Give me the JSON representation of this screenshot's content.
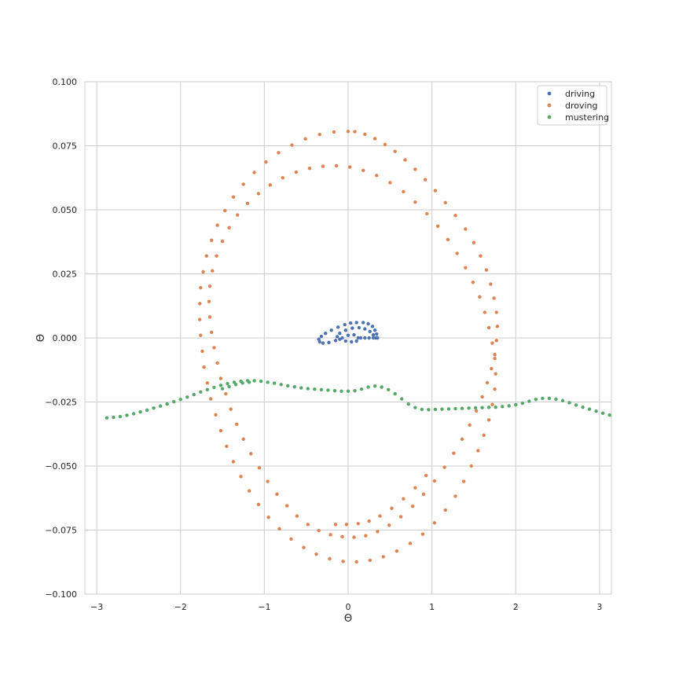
{
  "chart_data": {
    "type": "scatter",
    "title": "",
    "xlabel": "Θ",
    "ylabel": "Θ̇",
    "xlim": [
      -3.14159,
      3.14159
    ],
    "ylim": [
      -0.1,
      0.1
    ],
    "x_ticks": [
      -3,
      -2,
      -1,
      0,
      1,
      2,
      3
    ],
    "x_tick_labels": [
      "−3",
      "−2",
      "−1",
      "0",
      "1",
      "2",
      "3"
    ],
    "y_ticks": [
      -0.1,
      -0.075,
      -0.05,
      -0.025,
      0.0,
      0.025,
      0.05,
      0.075,
      0.1
    ],
    "y_tick_labels": [
      "−0.100",
      "−0.075",
      "−0.050",
      "−0.025",
      "0.000",
      "0.025",
      "0.050",
      "0.075",
      "0.100"
    ],
    "grid": true,
    "legend_position": "top-right",
    "series": [
      {
        "name": "driving",
        "color": "#4c72b0",
        "points": [
          [
            0.35,
            0.0
          ],
          [
            0.34,
            0.0015
          ],
          [
            0.32,
            0.003
          ],
          [
            0.29,
            0.0045
          ],
          [
            0.24,
            0.0055
          ],
          [
            0.18,
            0.006
          ],
          [
            0.1,
            0.006
          ],
          [
            0.03,
            0.0058
          ],
          [
            -0.04,
            0.0052
          ],
          [
            -0.12,
            0.0042
          ],
          [
            -0.2,
            0.003
          ],
          [
            -0.27,
            0.0018
          ],
          [
            -0.32,
            0.0006
          ],
          [
            -0.35,
            -0.0005
          ],
          [
            -0.34,
            -0.0015
          ],
          [
            -0.3,
            -0.002
          ],
          [
            -0.23,
            -0.0018
          ],
          [
            -0.15,
            -0.001
          ],
          [
            -0.07,
            0.0
          ],
          [
            0.0,
            0.001
          ],
          [
            0.07,
            0.0012
          ],
          [
            0.12,
            0.0
          ],
          [
            0.1,
            -0.0012
          ],
          [
            0.04,
            -0.0015
          ],
          [
            -0.03,
            -0.0012
          ],
          [
            -0.1,
            -0.0005
          ],
          [
            -0.13,
            0.0005
          ],
          [
            -0.1,
            0.0018
          ],
          [
            -0.03,
            0.003
          ],
          [
            0.05,
            0.0038
          ],
          [
            0.13,
            0.004
          ],
          [
            0.2,
            0.0035
          ],
          [
            0.26,
            0.0025
          ],
          [
            0.3,
            0.0012
          ],
          [
            0.33,
            0.0
          ],
          [
            0.3,
            0.0
          ],
          [
            0.25,
            0.0
          ],
          [
            0.2,
            0.0
          ],
          [
            0.15,
            0.0
          ]
        ]
      },
      {
        "name": "droving",
        "color": "#dd8452",
        "points": [
          [
            0.08,
            0.0805
          ],
          [
            0.2,
            0.0795
          ],
          [
            0.32,
            0.0778
          ],
          [
            0.44,
            0.0755
          ],
          [
            0.56,
            0.0728
          ],
          [
            0.68,
            0.0695
          ],
          [
            0.8,
            0.0658
          ],
          [
            0.92,
            0.0618
          ],
          [
            1.04,
            0.0575
          ],
          [
            1.16,
            0.0528
          ],
          [
            1.28,
            0.0478
          ],
          [
            1.4,
            0.0425
          ],
          [
            1.5,
            0.0372
          ],
          [
            1.58,
            0.032
          ],
          [
            1.65,
            0.0265
          ],
          [
            1.7,
            0.021
          ],
          [
            1.74,
            0.0155
          ],
          [
            1.77,
            0.01
          ],
          [
            1.78,
            0.0045
          ],
          [
            1.77,
            -0.001
          ],
          [
            1.75,
            -0.0065
          ],
          [
            1.71,
            -0.012
          ],
          [
            1.66,
            -0.0175
          ],
          [
            1.6,
            -0.023
          ],
          [
            1.53,
            -0.0285
          ],
          [
            1.45,
            -0.034
          ],
          [
            1.36,
            -0.0395
          ],
          [
            1.26,
            -0.045
          ],
          [
            1.15,
            -0.0505
          ],
          [
            1.03,
            -0.0558
          ],
          [
            0.9,
            -0.061
          ],
          [
            0.77,
            -0.0657
          ],
          [
            0.63,
            -0.0698
          ],
          [
            0.49,
            -0.0731
          ],
          [
            0.35,
            -0.0756
          ],
          [
            0.21,
            -0.0772
          ],
          [
            0.07,
            -0.0778
          ],
          [
            -0.07,
            -0.0776
          ],
          [
            -0.21,
            -0.0768
          ],
          [
            -0.35,
            -0.0752
          ],
          [
            -0.48,
            -0.0728
          ],
          [
            -0.61,
            -0.0695
          ],
          [
            -0.73,
            -0.0655
          ],
          [
            -0.85,
            -0.061
          ],
          [
            -0.96,
            -0.056
          ],
          [
            -1.06,
            -0.0507
          ],
          [
            -1.16,
            -0.0452
          ],
          [
            -1.25,
            -0.0395
          ],
          [
            -1.33,
            -0.0337
          ],
          [
            -1.4,
            -0.0278
          ],
          [
            -1.46,
            -0.0218
          ],
          [
            -1.52,
            -0.0158
          ],
          [
            -1.56,
            -0.0098
          ],
          [
            -1.6,
            -0.0038
          ],
          [
            -1.63,
            0.0022
          ],
          [
            -1.65,
            0.0082
          ],
          [
            -1.66,
            0.0142
          ],
          [
            -1.65,
            0.0202
          ],
          [
            -1.62,
            0.0262
          ],
          [
            -1.57,
            0.032
          ],
          [
            -1.5,
            0.0377
          ],
          [
            -1.42,
            0.043
          ],
          [
            -1.32,
            0.048
          ],
          [
            -1.2,
            0.0525
          ],
          [
            -1.07,
            0.0563
          ],
          [
            -0.93,
            0.0597
          ],
          [
            -0.78,
            0.0625
          ],
          [
            -0.62,
            0.0647
          ],
          [
            -0.46,
            0.0662
          ],
          [
            -0.3,
            0.067
          ],
          [
            -0.14,
            0.0672
          ],
          [
            0.02,
            0.0667
          ],
          [
            0.18,
            0.0654
          ],
          [
            0.34,
            0.0634
          ],
          [
            0.5,
            0.0606
          ],
          [
            0.66,
            0.0571
          ],
          [
            0.8,
            0.053
          ],
          [
            0.94,
            0.0485
          ],
          [
            1.07,
            0.0436
          ],
          [
            1.19,
            0.0384
          ],
          [
            1.3,
            0.033
          ],
          [
            1.4,
            0.0274
          ],
          [
            1.49,
            0.0217
          ],
          [
            1.57,
            0.016
          ],
          [
            1.63,
            0.01
          ],
          [
            1.68,
            0.004
          ],
          [
            1.72,
            -0.002
          ],
          [
            1.75,
            -0.008
          ],
          [
            1.76,
            -0.014
          ],
          [
            1.75,
            -0.02
          ],
          [
            1.72,
            -0.026
          ],
          [
            1.68,
            -0.032
          ],
          [
            1.62,
            -0.038
          ],
          [
            1.55,
            -0.044
          ],
          [
            1.47,
            -0.05
          ],
          [
            1.38,
            -0.056
          ],
          [
            1.28,
            -0.0618
          ],
          [
            1.16,
            -0.0672
          ],
          [
            1.03,
            -0.0722
          ],
          [
            0.89,
            -0.0766
          ],
          [
            0.74,
            -0.0802
          ],
          [
            0.58,
            -0.0832
          ],
          [
            0.42,
            -0.0854
          ],
          [
            0.26,
            -0.0868
          ],
          [
            0.1,
            -0.0874
          ],
          [
            -0.06,
            -0.0872
          ],
          [
            -0.22,
            -0.0862
          ],
          [
            -0.38,
            -0.0844
          ],
          [
            -0.53,
            -0.0818
          ],
          [
            -0.68,
            -0.0785
          ],
          [
            -0.82,
            -0.0745
          ],
          [
            -0.95,
            -0.07
          ],
          [
            -1.07,
            -0.065
          ],
          [
            -1.18,
            -0.0597
          ],
          [
            -1.28,
            -0.0541
          ],
          [
            -1.37,
            -0.0483
          ],
          [
            -1.45,
            -0.0423
          ],
          [
            -1.52,
            -0.0362
          ],
          [
            -1.58,
            -0.03
          ],
          [
            -1.64,
            -0.0238
          ],
          [
            -1.68,
            -0.0176
          ],
          [
            -1.72,
            -0.0114
          ],
          [
            -1.74,
            -0.0052
          ],
          [
            -1.76,
            0.001
          ],
          [
            -1.77,
            0.0072
          ],
          [
            -1.77,
            0.0134
          ],
          [
            -1.76,
            0.0196
          ],
          [
            -1.73,
            0.0258
          ],
          [
            -1.69,
            0.032
          ],
          [
            -1.63,
            0.0381
          ],
          [
            -1.56,
            0.044
          ],
          [
            -1.47,
            0.0497
          ],
          [
            -1.37,
            0.055
          ],
          [
            -1.25,
            0.06
          ],
          [
            -1.12,
            0.0646
          ],
          [
            -0.98,
            0.0687
          ],
          [
            -0.83,
            0.0723
          ],
          [
            -0.67,
            0.0753
          ],
          [
            -0.51,
            0.0777
          ],
          [
            -0.34,
            0.0794
          ],
          [
            -0.17,
            0.0804
          ],
          [
            0.0,
            0.0806
          ],
          [
            0.12,
            -0.0725
          ],
          [
            0.25,
            -0.0715
          ],
          [
            0.38,
            -0.0695
          ],
          [
            0.52,
            -0.0665
          ],
          [
            0.66,
            -0.0628
          ],
          [
            0.8,
            -0.0585
          ],
          [
            0.93,
            -0.0537
          ],
          [
            -0.15,
            -0.0728
          ],
          [
            -0.02,
            -0.0728
          ]
        ]
      },
      {
        "name": "mustering",
        "color": "#55a868",
        "points": [
          [
            -2.88,
            -0.0312
          ],
          [
            -2.8,
            -0.031
          ],
          [
            -2.72,
            -0.0307
          ],
          [
            -2.64,
            -0.0302
          ],
          [
            -2.56,
            -0.0296
          ],
          [
            -2.48,
            -0.0289
          ],
          [
            -2.4,
            -0.0282
          ],
          [
            -2.32,
            -0.0274
          ],
          [
            -2.24,
            -0.0266
          ],
          [
            -2.16,
            -0.0258
          ],
          [
            -2.08,
            -0.0249
          ],
          [
            -2.0,
            -0.024
          ],
          [
            -1.92,
            -0.0231
          ],
          [
            -1.84,
            -0.0221
          ],
          [
            -1.76,
            -0.0211
          ],
          [
            -1.68,
            -0.0202
          ],
          [
            -1.6,
            -0.0193
          ],
          [
            -1.52,
            -0.0185
          ],
          [
            -1.44,
            -0.0178
          ],
          [
            -1.36,
            -0.0173
          ],
          [
            -1.28,
            -0.0169
          ],
          [
            -1.2,
            -0.0167
          ],
          [
            -1.12,
            -0.0167
          ],
          [
            -1.04,
            -0.0169
          ],
          [
            -0.96,
            -0.0173
          ],
          [
            -0.88,
            -0.0177
          ],
          [
            -0.8,
            -0.0182
          ],
          [
            -0.72,
            -0.0187
          ],
          [
            -0.64,
            -0.0191
          ],
          [
            -0.56,
            -0.0195
          ],
          [
            -0.48,
            -0.0198
          ],
          [
            -0.4,
            -0.02
          ],
          [
            -0.32,
            -0.0202
          ],
          [
            -0.24,
            -0.0204
          ],
          [
            -0.16,
            -0.0206
          ],
          [
            -0.08,
            -0.0208
          ],
          [
            0.0,
            -0.0208
          ],
          [
            0.08,
            -0.0206
          ],
          [
            0.16,
            -0.02
          ],
          [
            0.24,
            -0.0192
          ],
          [
            0.32,
            -0.0188
          ],
          [
            0.4,
            -0.0192
          ],
          [
            0.48,
            -0.0202
          ],
          [
            0.56,
            -0.0218
          ],
          [
            0.64,
            -0.0238
          ],
          [
            0.72,
            -0.0258
          ],
          [
            0.8,
            -0.0272
          ],
          [
            0.88,
            -0.0279
          ],
          [
            0.96,
            -0.028
          ],
          [
            1.04,
            -0.0279
          ],
          [
            1.12,
            -0.0278
          ],
          [
            1.2,
            -0.0277
          ],
          [
            1.28,
            -0.0276
          ],
          [
            1.36,
            -0.0275
          ],
          [
            1.44,
            -0.0274
          ],
          [
            1.52,
            -0.0273
          ],
          [
            1.6,
            -0.0272
          ],
          [
            1.68,
            -0.0271
          ],
          [
            1.76,
            -0.027
          ],
          [
            1.84,
            -0.0268
          ],
          [
            1.92,
            -0.0265
          ],
          [
            2.0,
            -0.0261
          ],
          [
            2.08,
            -0.0255
          ],
          [
            2.16,
            -0.0247
          ],
          [
            2.24,
            -0.024
          ],
          [
            2.32,
            -0.0236
          ],
          [
            2.4,
            -0.0236
          ],
          [
            2.48,
            -0.0239
          ],
          [
            2.56,
            -0.0245
          ],
          [
            2.64,
            -0.0253
          ],
          [
            2.72,
            -0.0262
          ],
          [
            2.8,
            -0.027
          ],
          [
            2.88,
            -0.0278
          ],
          [
            2.96,
            -0.0286
          ],
          [
            3.04,
            -0.0294
          ],
          [
            3.12,
            -0.0301
          ],
          [
            -1.5,
            -0.0198
          ],
          [
            -1.42,
            -0.019
          ],
          [
            -1.34,
            -0.0182
          ],
          [
            -1.26,
            -0.0176
          ],
          [
            -1.18,
            -0.0173
          ]
        ]
      }
    ]
  }
}
